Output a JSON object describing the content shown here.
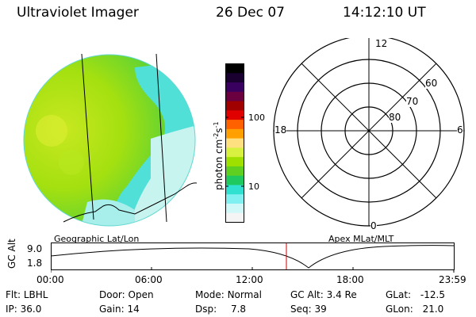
{
  "header": {
    "instrument": "Ultraviolet Imager",
    "date": "26 Dec 07",
    "time": "14:12:10 UT"
  },
  "geo_panel": {
    "label": "Geographic Lat/Lon"
  },
  "apex_panel": {
    "label": "Apex MLat/MLT",
    "mlt_labels": {
      "top": "12",
      "left": "18",
      "right": "6",
      "bottom": "0"
    },
    "lat_labels": [
      "60",
      "70",
      "80"
    ]
  },
  "colorbar": {
    "unit_label": "photon cm",
    "unit_sup1": "-2",
    "unit_mid": "s",
    "unit_sup2": "-1",
    "ticks": [
      "100",
      "10"
    ],
    "colors": [
      "#000000",
      "#1a0030",
      "#3a0060",
      "#6a0040",
      "#a00000",
      "#e00000",
      "#ff6000",
      "#ffa000",
      "#ffe080",
      "#d8f040",
      "#a0e000",
      "#60d020",
      "#20c860",
      "#30e0d0",
      "#80f0f0",
      "#d0f8f8",
      "#f4f4f4"
    ]
  },
  "timeline": {
    "ylabel": "GC Alt",
    "yticks": [
      "9.0",
      "1.8"
    ],
    "xticks": [
      "00:00",
      "06:00",
      "12:00",
      "18:00",
      "23:59"
    ],
    "current_time_marker": "14:12",
    "marker_color": "#cc0000"
  },
  "status": {
    "flt_label": "Flt:",
    "flt_value": "LBHL",
    "door_label": "Door:",
    "door_value": "Open",
    "mode_label": "Mode:",
    "mode_value": "Normal",
    "gcalt_label": "GC Alt:",
    "gcalt_value": "3.4 Re",
    "glat_label": "GLat:",
    "glat_value": "-12.5",
    "ip_label": "IP:",
    "ip_value": "36.0",
    "gain_label": "Gain:",
    "gain_value": "14",
    "dsp_label": "Dsp:",
    "dsp_value": "7.8",
    "seq_label": "Seq:",
    "seq_value": "39",
    "glon_label": "GLon:",
    "glon_value": "21.0"
  }
}
